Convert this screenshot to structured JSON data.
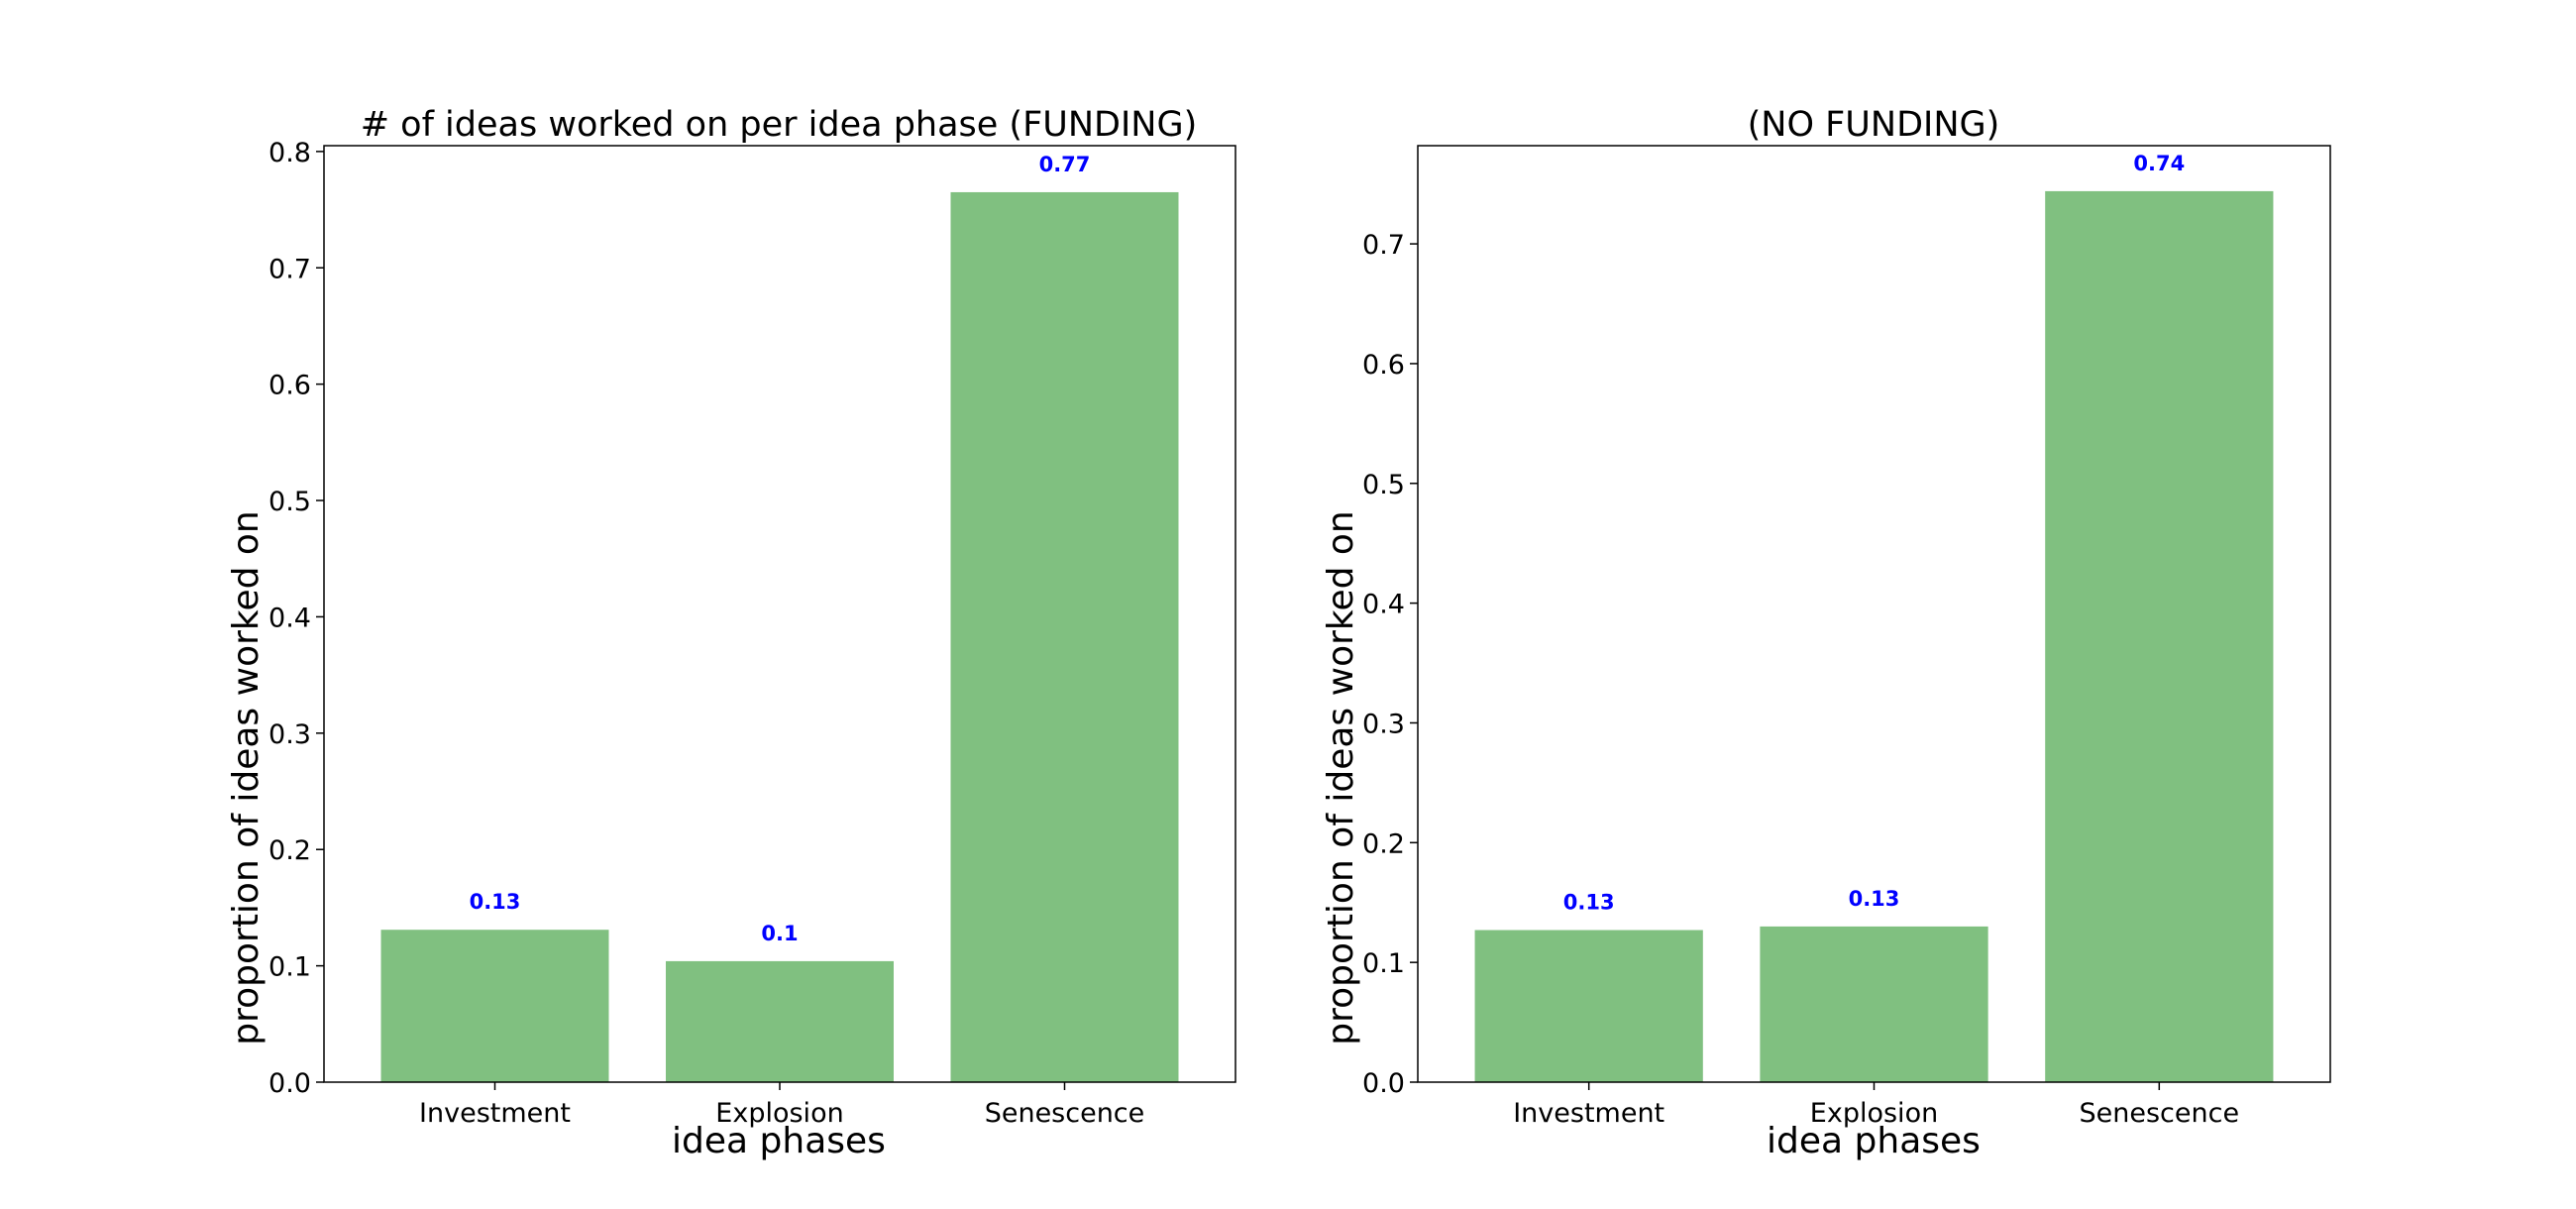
{
  "chart_data": [
    {
      "type": "bar",
      "title": "# of ideas worked on per idea phase (FUNDING)",
      "xlabel": "idea phases",
      "ylabel": "proportion of ideas worked on",
      "categories": [
        "Investment",
        "Explosion",
        "Senescence"
      ],
      "values": [
        0.131,
        0.104,
        0.765
      ],
      "data_labels": [
        "0.13",
        "0.1",
        "0.77"
      ],
      "ylim": [
        0,
        0.805
      ],
      "yticks": [
        0.0,
        0.1,
        0.2,
        0.3,
        0.4,
        0.5,
        0.6,
        0.7,
        0.8
      ],
      "ytick_labels": [
        "0.0",
        "0.1",
        "0.2",
        "0.3",
        "0.4",
        "0.5",
        "0.6",
        "0.7",
        "0.8"
      ],
      "grid": false,
      "bar_color": "#80c080",
      "label_color": "#0000ff"
    },
    {
      "type": "bar",
      "title": "(NO FUNDING)",
      "xlabel": "idea phases",
      "ylabel": "proportion of ideas worked on",
      "categories": [
        "Investment",
        "Explosion",
        "Senescence"
      ],
      "values": [
        0.127,
        0.13,
        0.744
      ],
      "data_labels": [
        "0.13",
        "0.13",
        "0.74"
      ],
      "ylim": [
        0,
        0.782
      ],
      "yticks": [
        0.0,
        0.1,
        0.2,
        0.3,
        0.4,
        0.5,
        0.6,
        0.7
      ],
      "ytick_labels": [
        "0.0",
        "0.1",
        "0.2",
        "0.3",
        "0.4",
        "0.5",
        "0.6",
        "0.7"
      ],
      "grid": false,
      "bar_color": "#80c080",
      "label_color": "#0000ff"
    }
  ]
}
